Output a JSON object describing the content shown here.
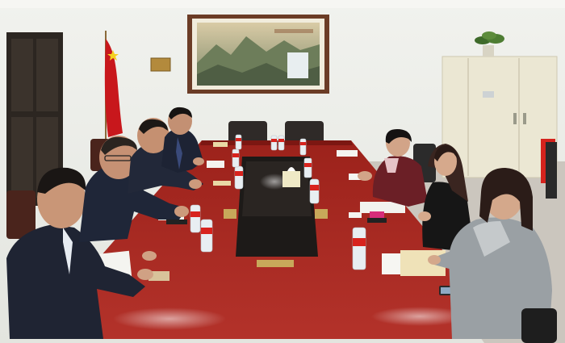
{
  "image": {
    "kind": "photo",
    "subject": "meeting-room",
    "caption": ""
  },
  "palette": {
    "wall": "#eceeea",
    "ceiling": "#f4f5f2",
    "table": "#a6261e",
    "table_dark": "#7c1712",
    "table_center": "#1d1a18",
    "floor": "#c9c4bc",
    "suit": "#1f2433",
    "flag": "#c8171c",
    "cabinet": "#ece8d6",
    "bookcase": "#2c2621",
    "painting_frame": "#6b3c26"
  }
}
